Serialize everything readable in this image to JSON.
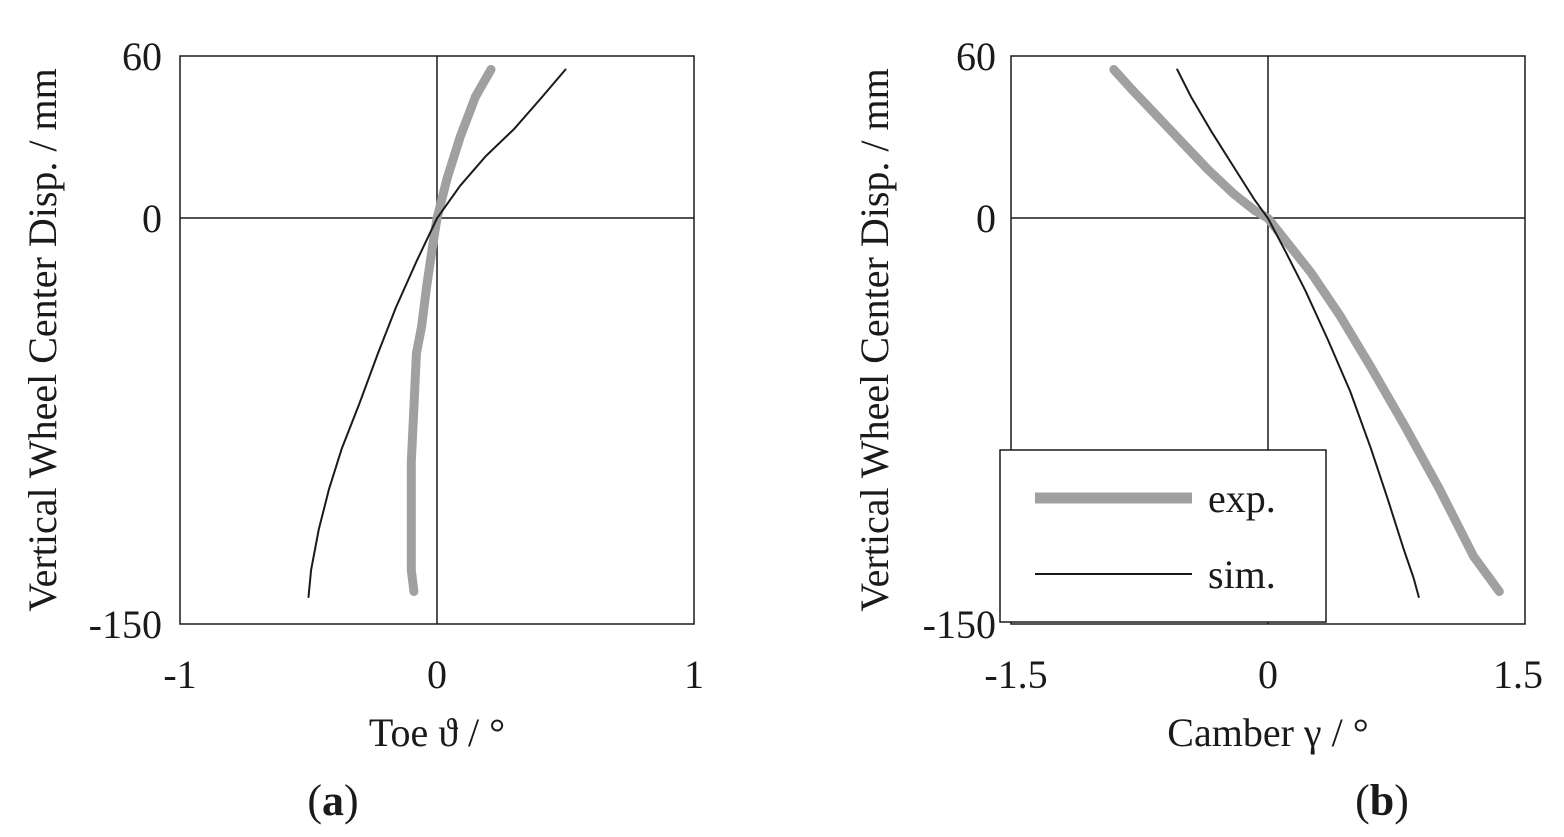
{
  "colors": {
    "exp": "#a0a0a0",
    "sim": "#1a1a1a",
    "axes": "#1a1a1a"
  },
  "chart_data": [
    {
      "type": "line",
      "panel": "(a)",
      "panel_letter": "a",
      "xlabel": "Toe ϑ / °",
      "ylabel": "Vertical Wheel Center Disp. / mm",
      "xlim": [
        -1,
        1
      ],
      "ylim": [
        -150,
        60
      ],
      "xticks": [
        "-1",
        "0",
        "1"
      ],
      "yticks": [
        "-150",
        "0",
        "60"
      ],
      "grid": false,
      "series": [
        {
          "name": "exp.",
          "x": [
            -0.09,
            -0.1,
            -0.1,
            -0.1,
            -0.09,
            -0.08,
            -0.06,
            -0.04,
            -0.02,
            0.0,
            0.04,
            0.09,
            0.15,
            0.21
          ],
          "y": [
            -138,
            -130,
            -110,
            -90,
            -70,
            -50,
            -40,
            -25,
            -12,
            0,
            15,
            30,
            45,
            55
          ]
        },
        {
          "name": "sim.",
          "x": [
            -0.5,
            -0.49,
            -0.46,
            -0.42,
            -0.37,
            -0.3,
            -0.23,
            -0.16,
            -0.08,
            0.0,
            0.09,
            0.19,
            0.3,
            0.41,
            0.5
          ],
          "y": [
            -140,
            -130,
            -115,
            -100,
            -85,
            -68,
            -50,
            -33,
            -16,
            0,
            12,
            23,
            33,
            45,
            55
          ]
        }
      ]
    },
    {
      "type": "line",
      "panel": "(b)",
      "panel_letter": "b",
      "xlabel": "Camber γ / °",
      "ylabel": "Vertical Wheel Center Disp. / mm",
      "xlim": [
        -1.5,
        1.5
      ],
      "ylim": [
        -150,
        60
      ],
      "xticks": [
        "-1.5",
        "0",
        "1.5"
      ],
      "yticks": [
        "-150",
        "0",
        "60"
      ],
      "grid": false,
      "legend": {
        "position": "bottom-left",
        "entries": [
          "exp.",
          "sim."
        ]
      },
      "series": [
        {
          "name": "exp.",
          "x": [
            -0.9,
            -0.8,
            -0.65,
            -0.5,
            -0.35,
            -0.2,
            -0.08,
            0.0,
            0.1,
            0.25,
            0.42,
            0.6,
            0.8,
            1.0,
            1.2,
            1.35
          ],
          "y": [
            55,
            48,
            38,
            28,
            18,
            9,
            3,
            0,
            -8,
            -20,
            -36,
            -55,
            -77,
            -100,
            -125,
            -138
          ]
        },
        {
          "name": "sim.",
          "x": [
            -0.53,
            -0.45,
            -0.33,
            -0.2,
            -0.08,
            0.0,
            0.1,
            0.22,
            0.35,
            0.48,
            0.6,
            0.7,
            0.79,
            0.85,
            0.88
          ],
          "y": [
            55,
            45,
            32,
            19,
            7,
            0,
            -12,
            -27,
            -45,
            -64,
            -85,
            -104,
            -122,
            -133,
            -140
          ]
        }
      ]
    }
  ]
}
